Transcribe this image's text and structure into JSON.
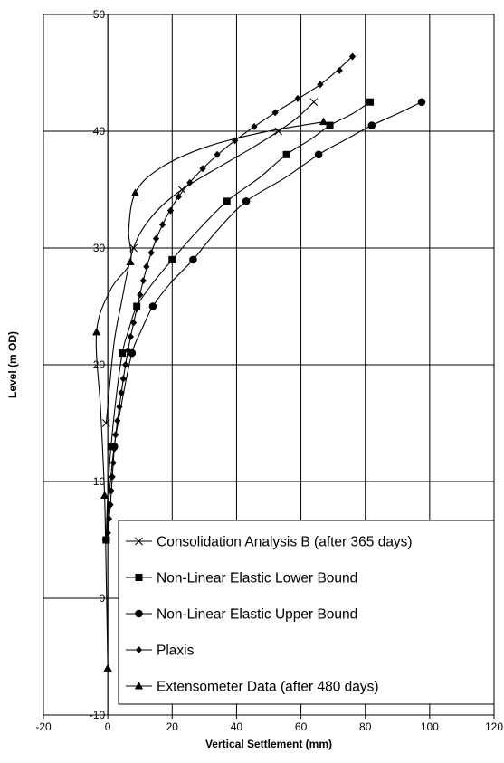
{
  "chart_data": {
    "type": "line",
    "xlabel": "Vertical Settlement (mm)",
    "ylabel": "Level (m OD)",
    "xlim": [
      -20,
      120
    ],
    "ylim": [
      -10,
      50
    ],
    "xticks": [
      "-20",
      "0",
      "20",
      "40",
      "60",
      "80",
      "100",
      "120"
    ],
    "yticks": [
      "-10",
      "0",
      "10",
      "20",
      "30",
      "40",
      "50"
    ],
    "grid": true,
    "legend_position": "bottom-right",
    "series": [
      {
        "name": "Consolidation Analysis B (after 365 days)",
        "marker": "x",
        "color": "#000000",
        "points": [
          [
            -0.5,
            15
          ],
          [
            8,
            30
          ],
          [
            23,
            35
          ],
          [
            53,
            40
          ],
          [
            64,
            42.5
          ]
        ],
        "curve": [
          [
            -0.5,
            15
          ],
          [
            0.5,
            18
          ],
          [
            2,
            22
          ],
          [
            4,
            25
          ],
          [
            8,
            30
          ],
          [
            14,
            32.8
          ],
          [
            23,
            35
          ],
          [
            35,
            37
          ],
          [
            45,
            38.6
          ],
          [
            53,
            40
          ],
          [
            59,
            41.2
          ],
          [
            64,
            42.5
          ]
        ]
      },
      {
        "name": "Non-Linear Elastic Lower Bound",
        "marker": "square",
        "color": "#000000",
        "points": [
          [
            -0.5,
            5
          ],
          [
            1,
            13
          ],
          [
            4.5,
            21
          ],
          [
            9,
            25
          ],
          [
            20,
            29
          ],
          [
            37,
            34
          ],
          [
            55.5,
            38
          ],
          [
            69,
            40.5
          ],
          [
            81.5,
            42.5
          ]
        ],
        "curve": [
          [
            -0.5,
            5
          ],
          [
            0,
            9
          ],
          [
            1,
            13
          ],
          [
            2.5,
            17
          ],
          [
            4.5,
            21
          ],
          [
            6.5,
            23
          ],
          [
            9,
            25
          ],
          [
            14,
            27
          ],
          [
            20,
            29
          ],
          [
            28,
            31.5
          ],
          [
            37,
            34
          ],
          [
            47,
            36
          ],
          [
            55.5,
            38
          ],
          [
            63,
            39.3
          ],
          [
            69,
            40.5
          ],
          [
            76,
            41.5
          ],
          [
            81.5,
            42.5
          ]
        ]
      },
      {
        "name": "Non-Linear Elastic Upper Bound",
        "marker": "circle",
        "color": "#000000",
        "points": [
          [
            -0.5,
            5
          ],
          [
            2,
            13
          ],
          [
            7.5,
            21
          ],
          [
            14,
            25
          ],
          [
            26.5,
            29
          ],
          [
            43,
            34
          ],
          [
            65.5,
            38
          ],
          [
            82,
            40.5
          ],
          [
            97.5,
            42.5
          ]
        ],
        "curve": [
          [
            -0.5,
            5
          ],
          [
            0.5,
            9
          ],
          [
            2,
            13
          ],
          [
            4.5,
            17
          ],
          [
            7.5,
            21
          ],
          [
            10.5,
            23
          ],
          [
            14,
            25
          ],
          [
            19.5,
            27
          ],
          [
            26.5,
            29
          ],
          [
            34,
            31.5
          ],
          [
            43,
            34
          ],
          [
            55,
            36
          ],
          [
            65.5,
            38
          ],
          [
            74,
            39.3
          ],
          [
            82,
            40.5
          ],
          [
            90,
            41.5
          ],
          [
            97.5,
            42.5
          ]
        ]
      },
      {
        "name": "Plaxis",
        "marker": "diamond",
        "color": "#000000",
        "points": [
          [
            0,
            5.6
          ],
          [
            0.4,
            6.8
          ],
          [
            0.8,
            8
          ],
          [
            1.1,
            9.2
          ],
          [
            1.4,
            10.4
          ],
          [
            1.7,
            11.6
          ],
          [
            2,
            12.8
          ],
          [
            2.4,
            14
          ],
          [
            3,
            15.2
          ],
          [
            3.6,
            16.4
          ],
          [
            4.2,
            17.6
          ],
          [
            4.8,
            18.8
          ],
          [
            5.5,
            20
          ],
          [
            6.3,
            21.2
          ],
          [
            7.1,
            22.4
          ],
          [
            8,
            23.6
          ],
          [
            9,
            24.8
          ],
          [
            10,
            26
          ],
          [
            11,
            27.2
          ],
          [
            12,
            28.4
          ],
          [
            13.5,
            29.6
          ],
          [
            15,
            30.8
          ],
          [
            17,
            32
          ],
          [
            19.5,
            33.2
          ],
          [
            22,
            34.4
          ],
          [
            25.5,
            35.6
          ],
          [
            29.5,
            36.8
          ],
          [
            34,
            38
          ],
          [
            39.5,
            39.2
          ],
          [
            45.5,
            40.4
          ],
          [
            52,
            41.6
          ],
          [
            59,
            42.8
          ],
          [
            66,
            44
          ],
          [
            72,
            45.2
          ],
          [
            76,
            46.4
          ]
        ],
        "curve": [
          [
            0,
            5.6
          ],
          [
            0.8,
            8
          ],
          [
            1.4,
            10.4
          ],
          [
            2,
            12.8
          ],
          [
            3,
            15.2
          ],
          [
            4.2,
            17.6
          ],
          [
            5.5,
            20
          ],
          [
            7.1,
            22.4
          ],
          [
            9,
            24.8
          ],
          [
            11,
            27.2
          ],
          [
            13.5,
            29.6
          ],
          [
            17,
            32
          ],
          [
            22,
            34.4
          ],
          [
            29.5,
            36.8
          ],
          [
            39.5,
            39.2
          ],
          [
            52,
            41.6
          ],
          [
            66,
            44
          ],
          [
            76,
            46.4
          ]
        ]
      },
      {
        "name": "Extensometer Data (after 480 days)",
        "marker": "triangle",
        "color": "#000000",
        "points": [
          [
            0,
            -6
          ],
          [
            -1,
            8.8
          ],
          [
            -3.5,
            22.8
          ],
          [
            7,
            28.8
          ],
          [
            8.5,
            34.7
          ],
          [
            67,
            40.8
          ]
        ],
        "curve": [
          [
            0,
            -6
          ],
          [
            -0.5,
            2
          ],
          [
            -1,
            8.8
          ],
          [
            -2.2,
            16
          ],
          [
            -3.5,
            22.8
          ],
          [
            1,
            26.5
          ],
          [
            7,
            28.8
          ],
          [
            6.5,
            31.5
          ],
          [
            8.5,
            34.7
          ],
          [
            16,
            36.8
          ],
          [
            30,
            38.6
          ],
          [
            48,
            39.9
          ],
          [
            67,
            40.8
          ]
        ]
      }
    ]
  }
}
